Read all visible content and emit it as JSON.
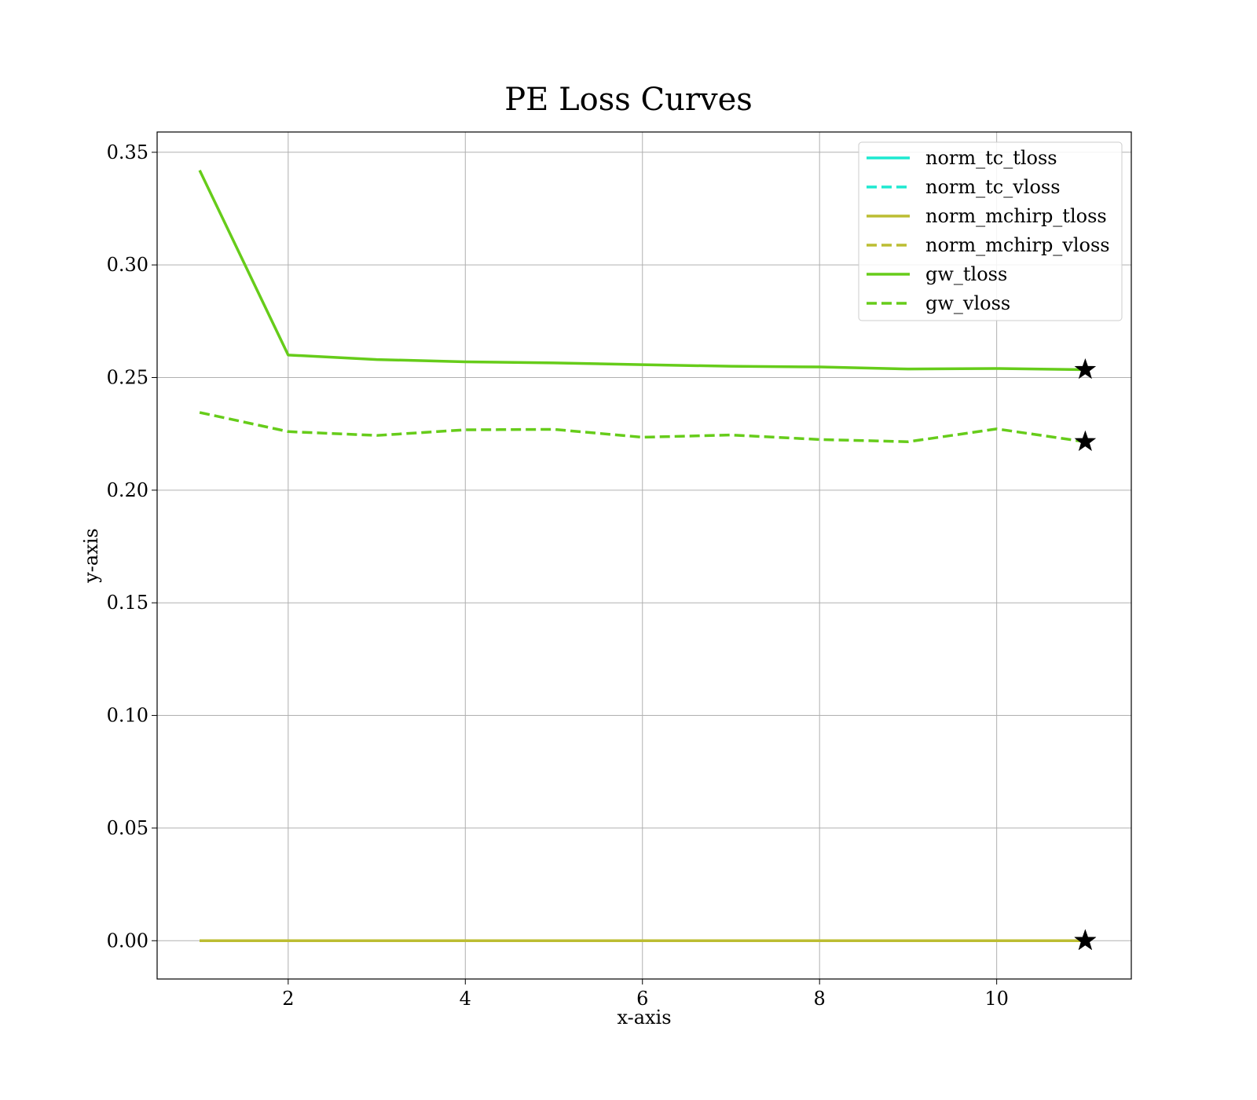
{
  "chart_data": {
    "type": "line",
    "title": "PE Loss Curves",
    "xlabel": "x-axis",
    "ylabel": "y-axis",
    "xlim": [
      0.52,
      11.52
    ],
    "ylim": [
      -0.017,
      0.359
    ],
    "xticks": [
      2,
      4,
      6,
      8,
      10
    ],
    "yticks": [
      0.0,
      0.05,
      0.1,
      0.15,
      0.2,
      0.25,
      0.3,
      0.35
    ],
    "xtick_labels": [
      "2",
      "4",
      "6",
      "8",
      "10"
    ],
    "ytick_labels": [
      "0.00",
      "0.05",
      "0.10",
      "0.15",
      "0.20",
      "0.25",
      "0.30",
      "0.35"
    ],
    "grid": true,
    "legend_position": "top-right",
    "x": [
      1,
      2,
      3,
      4,
      5,
      6,
      7,
      8,
      9,
      10,
      11
    ],
    "series": [
      {
        "name": "norm_tc_tloss",
        "color": "#1de9d0",
        "dash": "solid",
        "values": [
          0.0,
          0.0,
          0.0,
          0.0,
          0.0,
          0.0,
          0.0,
          0.0,
          0.0,
          0.0,
          0.0
        ],
        "marker_at_last": true
      },
      {
        "name": "norm_tc_vloss",
        "color": "#1de9d0",
        "dash": "dashed",
        "values": [
          0.0,
          0.0,
          0.0,
          0.0,
          0.0,
          0.0,
          0.0,
          0.0,
          0.0,
          0.0,
          0.0
        ],
        "marker_at_last": true
      },
      {
        "name": "norm_mchirp_tloss",
        "color": "#bcbd32",
        "dash": "solid",
        "values": [
          0.0,
          0.0,
          0.0,
          0.0,
          0.0,
          0.0,
          0.0,
          0.0,
          0.0,
          0.0,
          0.0
        ],
        "marker_at_last": true
      },
      {
        "name": "norm_mchirp_vloss",
        "color": "#bcbd32",
        "dash": "dashed",
        "values": [
          0.0,
          0.0,
          0.0,
          0.0,
          0.0,
          0.0,
          0.0,
          0.0,
          0.0,
          0.0,
          0.0
        ],
        "marker_at_last": true
      },
      {
        "name": "gw_tloss",
        "color": "#66cc1a",
        "dash": "solid",
        "values": [
          0.342,
          0.26,
          0.258,
          0.257,
          0.2565,
          0.2557,
          0.255,
          0.2547,
          0.2538,
          0.254,
          0.2535
        ],
        "marker_at_last": true
      },
      {
        "name": "gw_vloss",
        "color": "#66cc1a",
        "dash": "dashed",
        "values": [
          0.2345,
          0.226,
          0.2243,
          0.2268,
          0.227,
          0.2235,
          0.2245,
          0.2225,
          0.2215,
          0.2272,
          0.2215
        ],
        "marker_at_last": true
      }
    ]
  }
}
